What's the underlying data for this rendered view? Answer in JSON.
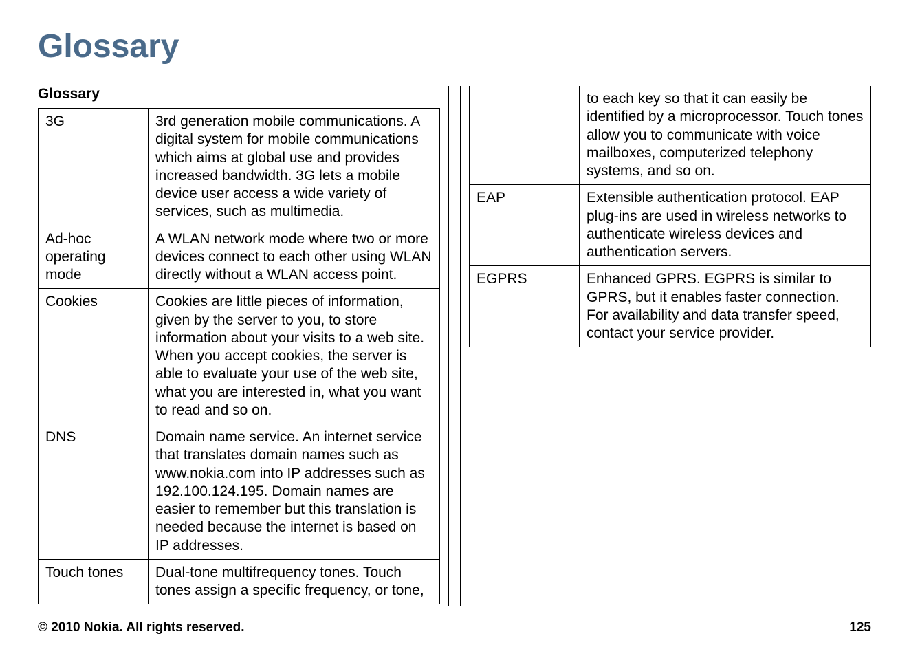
{
  "page": {
    "title": "Glossary",
    "section_heading": "Glossary",
    "copyright": "© 2010 Nokia. All rights reserved.",
    "page_number": "125"
  },
  "left_entries": [
    {
      "term": "3G",
      "definition": "3rd generation mobile communications. A digital system for mobile communications which aims at global use and provides increased bandwidth. 3G lets a mobile device user access a wide variety of services, such as multimedia."
    },
    {
      "term": "Ad-hoc operating mode",
      "definition": "A WLAN network mode where two or more devices connect to each other using WLAN directly without a WLAN access point."
    },
    {
      "term": "Cookies",
      "definition": "Cookies are little pieces of information, given by the server to you, to store information about your visits to a web site. When you accept cookies, the server is able to evaluate your use of the web site, what you are interested in, what you want to read and so on."
    },
    {
      "term": "DNS",
      "definition": "Domain name service. An internet service that translates domain names such as www.nokia.com into IP addresses such as 192.100.124.195. Domain names are easier to remember but this translation is needed because the internet is based on IP addresses."
    },
    {
      "term": "Touch tones",
      "definition": "Dual-tone multifrequency tones. Touch tones assign a specific frequency, or tone,"
    }
  ],
  "right_entries": [
    {
      "term": "",
      "definition": "to each key so that it can easily be identified by a microprocessor. Touch tones allow you to communicate with voice mailboxes, computerized telephony systems, and so on."
    },
    {
      "term": "EAP",
      "definition": "Extensible authentication protocol. EAP plug-ins are used in wireless networks to authenticate wireless devices and authentication servers."
    },
    {
      "term": "EGPRS",
      "definition": "Enhanced GPRS. EGPRS is similar to GPRS, but it enables faster connection. For availability and data transfer speed, contact your service provider."
    }
  ]
}
